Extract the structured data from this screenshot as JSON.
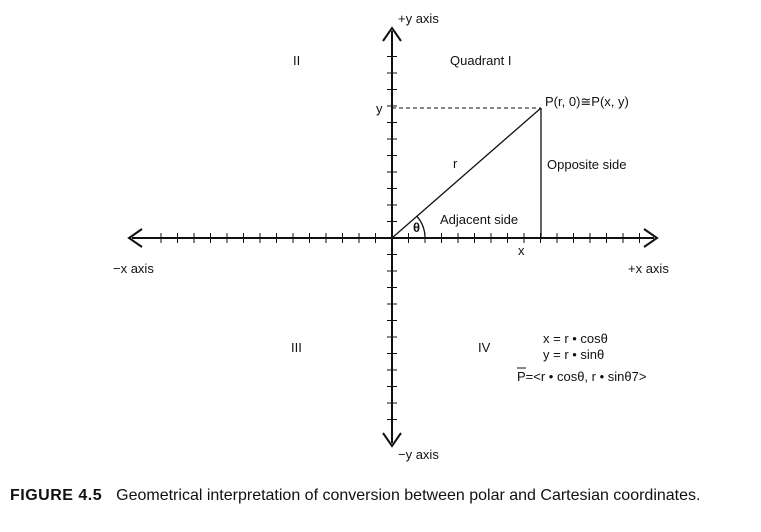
{
  "axes": {
    "pos_y": "+y axis",
    "neg_y": "−y axis",
    "pos_x": "+x axis",
    "neg_x": "−x axis",
    "x_tick": "x",
    "y_tick": "y"
  },
  "quadrants": {
    "q1": "Quadrant I",
    "q2": "II",
    "q3": "III",
    "q4": "IV"
  },
  "triangle": {
    "point": "P(r, 0)≅P(x, y)",
    "hypotenuse": "r",
    "angle": "θ",
    "adjacent": "Adjacent side",
    "opposite": "Opposite side"
  },
  "equations": {
    "x_eq": "x = r • cosθ",
    "y_eq": "y = r • sinθ",
    "p_vec": "P=<r • cosθ, r • sinθ7>"
  },
  "caption": {
    "label": "FIGURE 4.5",
    "text": "Geometrical interpretation of conversion between polar and Cartesian coordinates."
  }
}
